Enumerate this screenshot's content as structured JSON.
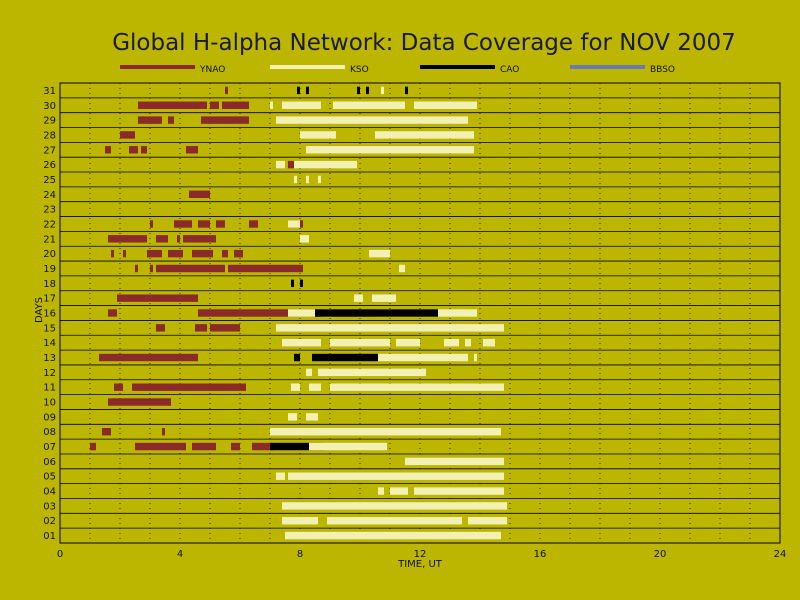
{
  "chart_data": {
    "type": "timeline",
    "title": "Global H-alpha Network: Data Coverage for NOV 2007",
    "xlabel": "TIME, UT",
    "ylabel": "DAYS",
    "xlim": [
      0,
      24
    ],
    "x_ticks": [
      "0",
      "4",
      "8",
      "12",
      "16",
      "20",
      "24"
    ],
    "y_ticks": [
      "01",
      "02",
      "03",
      "04",
      "05",
      "06",
      "07",
      "08",
      "09",
      "10",
      "11",
      "12",
      "13",
      "14",
      "15",
      "16",
      "17",
      "18",
      "19",
      "20",
      "21",
      "22",
      "23",
      "24",
      "25",
      "26",
      "27",
      "28",
      "29",
      "30",
      "31"
    ],
    "grid": "dotted vertical every hour, horizontal line between days",
    "legend_position": "top",
    "series": [
      {
        "name": "YNAO",
        "color": "#8b2a2a",
        "intervals": [
          {
            "day": 31,
            "start": 5.5,
            "end": 5.6
          },
          {
            "day": 30,
            "start": 2.6,
            "end": 4.9
          },
          {
            "day": 30,
            "start": 5.0,
            "end": 5.3
          },
          {
            "day": 30,
            "start": 5.4,
            "end": 6.3
          },
          {
            "day": 29,
            "start": 2.6,
            "end": 3.4
          },
          {
            "day": 29,
            "start": 3.6,
            "end": 3.8
          },
          {
            "day": 29,
            "start": 4.7,
            "end": 6.3
          },
          {
            "day": 28,
            "start": 2.0,
            "end": 2.5
          },
          {
            "day": 27,
            "start": 1.5,
            "end": 1.7
          },
          {
            "day": 27,
            "start": 2.3,
            "end": 2.6
          },
          {
            "day": 27,
            "start": 2.7,
            "end": 2.9
          },
          {
            "day": 27,
            "start": 4.2,
            "end": 4.6
          },
          {
            "day": 26,
            "start": 7.6,
            "end": 7.8
          },
          {
            "day": 24,
            "start": 4.3,
            "end": 5.0
          },
          {
            "day": 22,
            "start": 3.0,
            "end": 3.1
          },
          {
            "day": 22,
            "start": 3.8,
            "end": 4.4
          },
          {
            "day": 22,
            "start": 4.6,
            "end": 5.0
          },
          {
            "day": 22,
            "start": 5.2,
            "end": 5.5
          },
          {
            "day": 22,
            "start": 6.3,
            "end": 6.6
          },
          {
            "day": 22,
            "start": 7.6,
            "end": 8.1
          },
          {
            "day": 21,
            "start": 1.6,
            "end": 2.9
          },
          {
            "day": 21,
            "start": 3.2,
            "end": 3.6
          },
          {
            "day": 21,
            "start": 3.9,
            "end": 4.0
          },
          {
            "day": 21,
            "start": 4.1,
            "end": 5.2
          },
          {
            "day": 20,
            "start": 1.7,
            "end": 1.8
          },
          {
            "day": 20,
            "start": 2.1,
            "end": 2.2
          },
          {
            "day": 20,
            "start": 2.9,
            "end": 3.4
          },
          {
            "day": 20,
            "start": 3.6,
            "end": 4.1
          },
          {
            "day": 20,
            "start": 4.4,
            "end": 5.1
          },
          {
            "day": 20,
            "start": 5.4,
            "end": 5.6
          },
          {
            "day": 20,
            "start": 5.8,
            "end": 6.1
          },
          {
            "day": 19,
            "start": 2.5,
            "end": 2.6
          },
          {
            "day": 19,
            "start": 3.0,
            "end": 3.1
          },
          {
            "day": 19,
            "start": 3.2,
            "end": 5.5
          },
          {
            "day": 19,
            "start": 5.6,
            "end": 8.1
          },
          {
            "day": 17,
            "start": 1.9,
            "end": 4.6
          },
          {
            "day": 16,
            "start": 1.6,
            "end": 1.9
          },
          {
            "day": 16,
            "start": 4.6,
            "end": 8.8
          },
          {
            "day": 15,
            "start": 3.2,
            "end": 3.5
          },
          {
            "day": 15,
            "start": 4.5,
            "end": 4.9
          },
          {
            "day": 15,
            "start": 5.0,
            "end": 6.0
          },
          {
            "day": 13,
            "start": 1.3,
            "end": 4.6
          },
          {
            "day": 11,
            "start": 1.8,
            "end": 2.1
          },
          {
            "day": 11,
            "start": 2.4,
            "end": 6.2
          },
          {
            "day": 10,
            "start": 1.6,
            "end": 3.7
          },
          {
            "day": 8,
            "start": 1.4,
            "end": 1.7
          },
          {
            "day": 8,
            "start": 3.4,
            "end": 3.5
          },
          {
            "day": 7,
            "start": 1.0,
            "end": 1.2
          },
          {
            "day": 7,
            "start": 2.5,
            "end": 4.2
          },
          {
            "day": 7,
            "start": 4.4,
            "end": 5.2
          },
          {
            "day": 7,
            "start": 5.7,
            "end": 6.0
          },
          {
            "day": 7,
            "start": 6.4,
            "end": 8.8
          }
        ]
      },
      {
        "name": "KSO",
        "color": "#f3f0b4",
        "intervals": [
          {
            "day": 31,
            "start": 10.7,
            "end": 10.8
          },
          {
            "day": 30,
            "start": 7.0,
            "end": 7.1
          },
          {
            "day": 30,
            "start": 7.4,
            "end": 8.7
          },
          {
            "day": 30,
            "start": 9.1,
            "end": 11.5
          },
          {
            "day": 30,
            "start": 11.8,
            "end": 13.9
          },
          {
            "day": 29,
            "start": 7.2,
            "end": 13.6
          },
          {
            "day": 28,
            "start": 8.0,
            "end": 9.2
          },
          {
            "day": 28,
            "start": 10.5,
            "end": 13.8
          },
          {
            "day": 27,
            "start": 8.2,
            "end": 13.8
          },
          {
            "day": 26,
            "start": 7.2,
            "end": 7.5
          },
          {
            "day": 26,
            "start": 7.8,
            "end": 9.9
          },
          {
            "day": 25,
            "start": 7.8,
            "end": 7.9
          },
          {
            "day": 25,
            "start": 8.2,
            "end": 8.3
          },
          {
            "day": 25,
            "start": 8.6,
            "end": 8.7
          },
          {
            "day": 22,
            "start": 7.6,
            "end": 8.0
          },
          {
            "day": 21,
            "start": 8.0,
            "end": 8.3
          },
          {
            "day": 20,
            "start": 10.3,
            "end": 11.0
          },
          {
            "day": 19,
            "start": 11.3,
            "end": 11.5
          },
          {
            "day": 17,
            "start": 9.8,
            "end": 10.1
          },
          {
            "day": 17,
            "start": 10.4,
            "end": 11.2
          },
          {
            "day": 16,
            "start": 7.6,
            "end": 9.1
          },
          {
            "day": 16,
            "start": 10.5,
            "end": 13.9
          },
          {
            "day": 15,
            "start": 7.2,
            "end": 14.8
          },
          {
            "day": 14,
            "start": 7.4,
            "end": 8.7
          },
          {
            "day": 14,
            "start": 9.0,
            "end": 11.0
          },
          {
            "day": 14,
            "start": 11.2,
            "end": 12.0
          },
          {
            "day": 14,
            "start": 12.8,
            "end": 13.3
          },
          {
            "day": 14,
            "start": 13.5,
            "end": 13.7
          },
          {
            "day": 14,
            "start": 14.1,
            "end": 14.5
          },
          {
            "day": 13,
            "start": 10.6,
            "end": 13.6
          },
          {
            "day": 13,
            "start": 13.8,
            "end": 13.9
          },
          {
            "day": 12,
            "start": 8.2,
            "end": 8.4
          },
          {
            "day": 12,
            "start": 8.6,
            "end": 12.2
          },
          {
            "day": 11,
            "start": 7.7,
            "end": 8.0
          },
          {
            "day": 11,
            "start": 8.3,
            "end": 8.7
          },
          {
            "day": 11,
            "start": 9.0,
            "end": 14.8
          },
          {
            "day": 9,
            "start": 7.6,
            "end": 7.9
          },
          {
            "day": 9,
            "start": 8.2,
            "end": 8.6
          },
          {
            "day": 8,
            "start": 7.0,
            "end": 14.7
          },
          {
            "day": 7,
            "start": 7.1,
            "end": 10.9
          },
          {
            "day": 6,
            "start": 11.5,
            "end": 14.8
          },
          {
            "day": 5,
            "start": 7.2,
            "end": 7.5
          },
          {
            "day": 5,
            "start": 7.6,
            "end": 14.8
          },
          {
            "day": 4,
            "start": 10.6,
            "end": 10.8
          },
          {
            "day": 4,
            "start": 11.0,
            "end": 11.6
          },
          {
            "day": 4,
            "start": 11.8,
            "end": 14.8
          },
          {
            "day": 3,
            "start": 7.4,
            "end": 14.9
          },
          {
            "day": 2,
            "start": 7.4,
            "end": 8.6
          },
          {
            "day": 2,
            "start": 8.9,
            "end": 13.4
          },
          {
            "day": 2,
            "start": 13.6,
            "end": 14.9
          },
          {
            "day": 1,
            "start": 7.5,
            "end": 14.7
          }
        ]
      },
      {
        "name": "CAO",
        "color": "#000000",
        "intervals": [
          {
            "day": 31,
            "start": 7.9,
            "end": 8.0
          },
          {
            "day": 31,
            "start": 8.2,
            "end": 8.3
          },
          {
            "day": 31,
            "start": 9.9,
            "end": 10.0
          },
          {
            "day": 31,
            "start": 10.2,
            "end": 10.3
          },
          {
            "day": 31,
            "start": 11.5,
            "end": 11.6
          },
          {
            "day": 18,
            "start": 7.7,
            "end": 7.8
          },
          {
            "day": 18,
            "start": 8.0,
            "end": 8.1
          },
          {
            "day": 16,
            "start": 8.5,
            "end": 8.6
          },
          {
            "day": 16,
            "start": 8.5,
            "end": 12.6
          },
          {
            "day": 13,
            "start": 7.8,
            "end": 8.0
          },
          {
            "day": 13,
            "start": 8.4,
            "end": 10.6
          },
          {
            "day": 7,
            "start": 7.0,
            "end": 8.3
          }
        ]
      },
      {
        "name": "BBSO",
        "color": "#6a78b4",
        "intervals": []
      }
    ]
  }
}
